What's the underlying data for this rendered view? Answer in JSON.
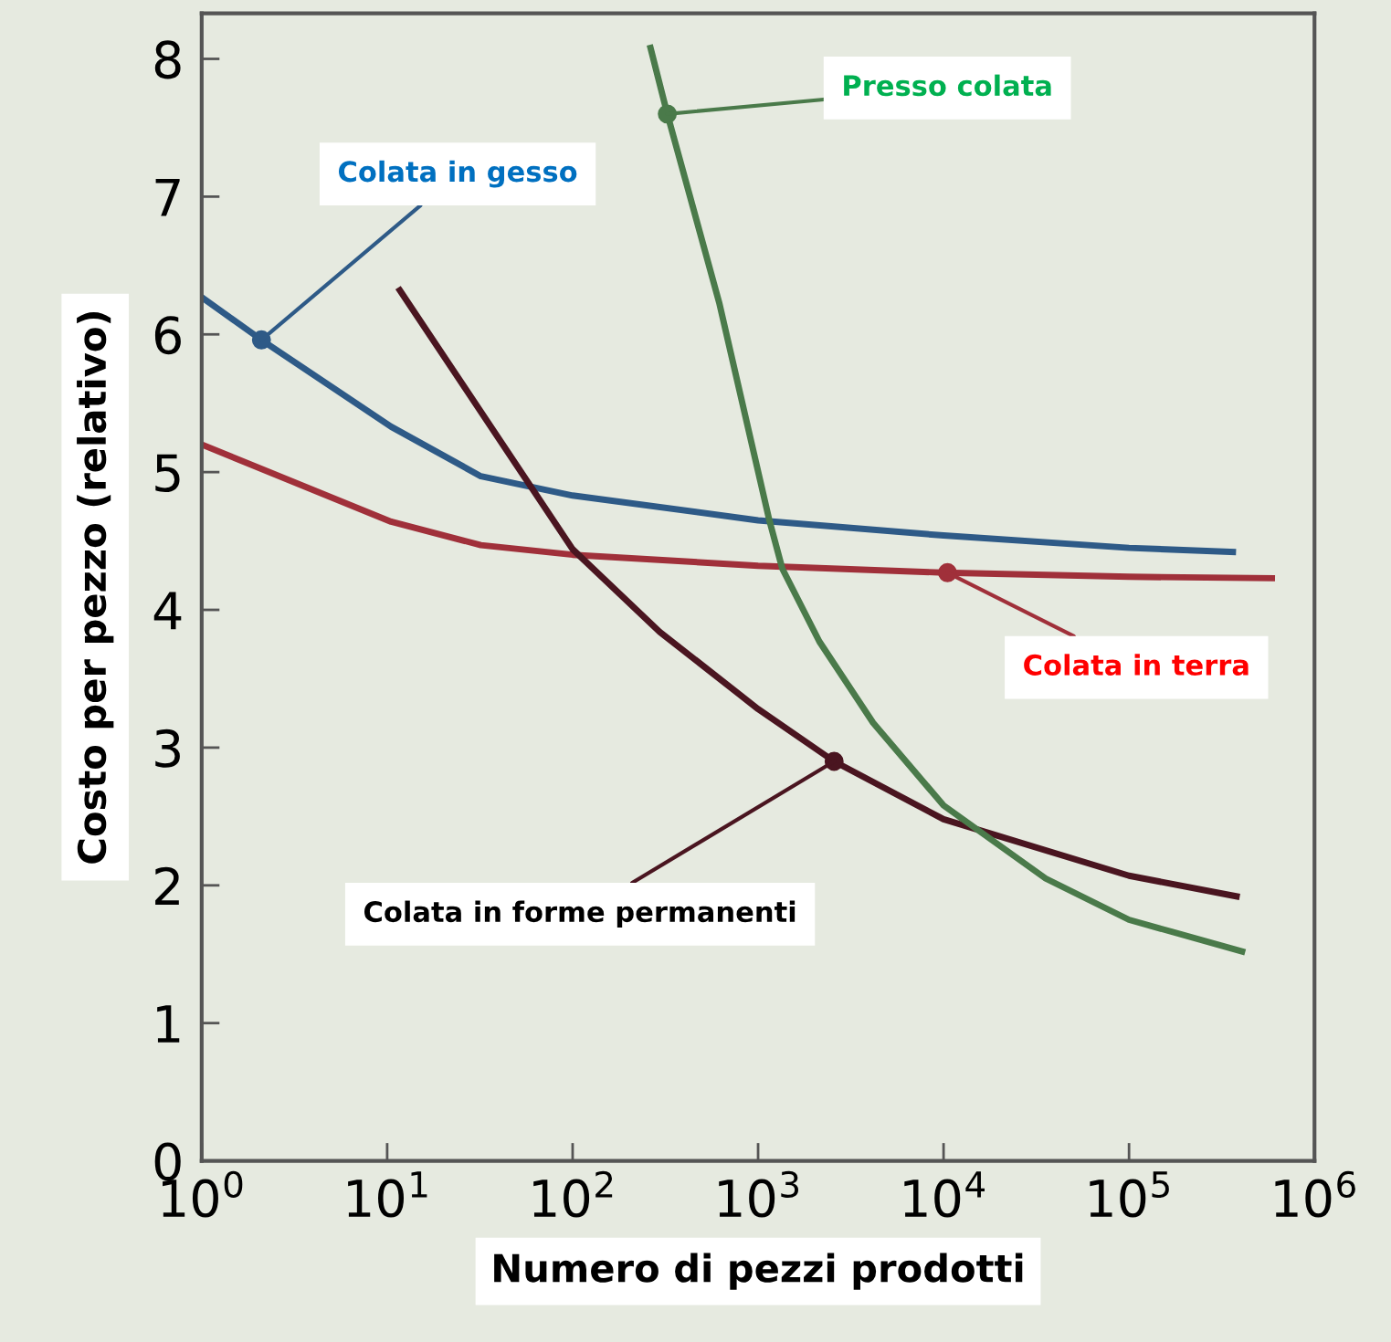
{
  "chart_data": {
    "type": "line",
    "xlabel": "Numero di pezzi prodotti",
    "ylabel": "Costo per pezzo (relativo)",
    "log": "x",
    "xlim": [
      1,
      1000000
    ],
    "ylim": [
      0,
      8.33
    ],
    "xticks": [
      {
        "value": 1,
        "label": "10$^{0}$"
      },
      {
        "value": 10,
        "label": "10$^{1}$"
      },
      {
        "value": 100,
        "label": "10$^{2}$"
      },
      {
        "value": 1000,
        "label": "10$^{3}$"
      },
      {
        "value": 10000,
        "label": "10$^{4}$"
      },
      {
        "value": 100000,
        "label": "10$^{5}$"
      },
      {
        "value": 1000000,
        "label": "10$^{6}$"
      }
    ],
    "yticks": [
      0,
      1,
      2,
      3,
      4,
      5,
      6,
      7,
      8
    ],
    "grid": false,
    "legend": false,
    "series": [
      {
        "color": "#2e5a87",
        "x": [
          1,
          2.1,
          10.5,
          32,
          100,
          1000,
          10000,
          100000,
          363000
        ],
        "values": [
          6.27,
          5.96,
          5.33,
          4.97,
          4.83,
          4.65,
          4.54,
          4.45,
          4.42
        ]
      },
      {
        "color": "#a0303a",
        "x": [
          1,
          10.5,
          32,
          100,
          1000,
          10000,
          100000,
          589000
        ],
        "values": [
          5.2,
          4.64,
          4.47,
          4.4,
          4.32,
          4.27,
          4.24,
          4.23
        ]
      },
      {
        "color": "#4a1520",
        "x": [
          11.7,
          100,
          295,
          1000,
          2570,
          10000,
          100000,
          380000
        ],
        "values": [
          6.32,
          4.44,
          3.84,
          3.28,
          2.9,
          2.48,
          2.07,
          1.92
        ]
      },
      {
        "color": "#4a7a4a",
        "x": [
          263,
          324,
          617,
          1150,
          1350,
          2140,
          4170,
          10000,
          35500,
          100000,
          407000
        ],
        "values": [
          8.08,
          7.6,
          6.23,
          4.65,
          4.3,
          3.77,
          3.18,
          2.58,
          2.05,
          1.75,
          1.52
        ]
      }
    ],
    "annotations": [
      {
        "text": "Colata in gesso",
        "x": 2.1,
        "y": 5.96
      },
      {
        "text": "Colata in terra",
        "x": 10500,
        "y": 4.27
      },
      {
        "text": "Colata in forme permanenti",
        "x": 2570,
        "y": 2.9
      },
      {
        "text": "Presso colata",
        "x": 324,
        "y": 7.6
      }
    ]
  }
}
